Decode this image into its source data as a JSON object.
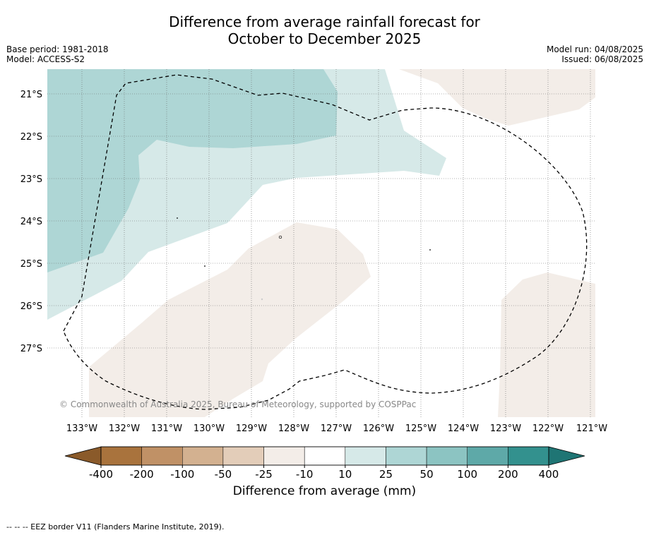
{
  "title": {
    "line1": "Difference from average rainfall forecast for",
    "line2": "October to December 2025"
  },
  "meta_left": {
    "base_period": "Base period: 1981-2018",
    "model": "Model: ACCESS-S2"
  },
  "meta_right": {
    "model_run": "Model run: 04/08/2025",
    "issued": "Issued: 06/08/2025"
  },
  "map": {
    "lat_labels": [
      "21°S",
      "22°S",
      "23°S",
      "24°S",
      "25°S",
      "26°S",
      "27°S"
    ],
    "lon_labels": [
      "133°W",
      "132°W",
      "131°W",
      "130°W",
      "129°W",
      "128°W",
      "127°W",
      "126°W",
      "125°W",
      "124°W",
      "123°W",
      "122°W",
      "121°W"
    ],
    "copyright": "© Commonwealth of Australia 2025, Bureau of Meteorology, supported by COSPPac"
  },
  "colorbar": {
    "ticks": [
      "-400",
      "-200",
      "-100",
      "-50",
      "-25",
      "-10",
      "10",
      "25",
      "50",
      "100",
      "200",
      "400"
    ],
    "colors": [
      "#a9733d",
      "#c09166",
      "#d3b190",
      "#e3cdb9",
      "#f3ede8",
      "#ffffff",
      "#d6e9e8",
      "#aed6d5",
      "#8cc4c2",
      "#5ea9a8",
      "#33918e"
    ],
    "under_color": "#8a5a2a",
    "over_color": "#1f7574",
    "label": "Difference from average (mm)"
  },
  "legend_footer": "-- -- -- EEZ border V11 (Flanders Marine Institute, 2019).",
  "colors": {
    "light_teal": "#d6e9e8",
    "mid_teal": "#aed6d5",
    "light_brown": "#f3ede8"
  }
}
